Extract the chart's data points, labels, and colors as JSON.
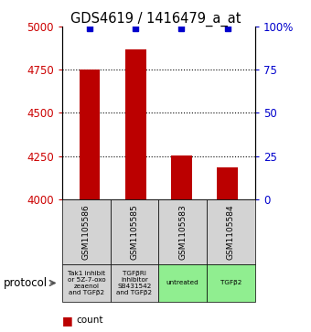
{
  "title": "GDS4619 / 1416479_a_at",
  "samples": [
    "GSM1105586",
    "GSM1105585",
    "GSM1105583",
    "GSM1105584"
  ],
  "counts": [
    4750,
    4870,
    4255,
    4185
  ],
  "percentiles": [
    99,
    99,
    99,
    99
  ],
  "protocols": [
    "Tak1 inhibit\nor 5Z-7-oxo\nzeaenol\nand TGFβ2",
    "TGFβRI\ninhibitor\nSB431542\nand TGFβ2",
    "untreated",
    "TGFβ2"
  ],
  "protocol_colors": [
    "#d3d3d3",
    "#d3d3d3",
    "#90ee90",
    "#90ee90"
  ],
  "ylim_left": [
    4000,
    5000
  ],
  "ylim_right": [
    0,
    100
  ],
  "yticks_left": [
    4000,
    4250,
    4500,
    4750,
    5000
  ],
  "yticks_right": [
    0,
    25,
    50,
    75,
    100
  ],
  "bar_color": "#bb0000",
  "dot_color": "#0000cc",
  "left_label_color": "#cc0000",
  "right_label_color": "#0000cc",
  "bar_width": 0.45,
  "figsize": [
    3.4,
    3.63
  ],
  "dpi": 100
}
